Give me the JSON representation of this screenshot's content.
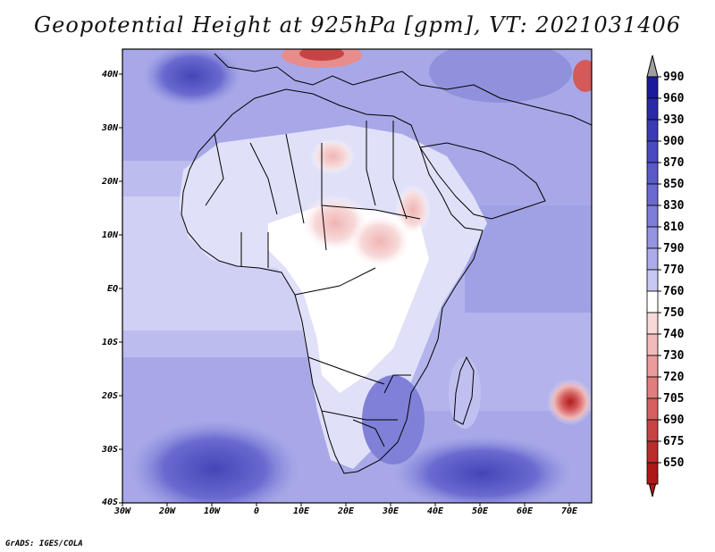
{
  "title": "Geopotential Height at 925hPa [gpm], VT: 2021031406",
  "footer": "GrADS: IGES/COLA",
  "lat_labels": [
    "40N",
    "30N",
    "20N",
    "10N",
    "EQ",
    "10S",
    "20S",
    "30S",
    "40S"
  ],
  "lon_labels": [
    "30W",
    "20W",
    "10W",
    "0",
    "10E",
    "20E",
    "30E",
    "40E",
    "50E",
    "60E",
    "70E"
  ],
  "colorbar": {
    "levels": [
      "990",
      "960",
      "930",
      "900",
      "870",
      "850",
      "830",
      "810",
      "790",
      "770",
      "760",
      "750",
      "740",
      "730",
      "720",
      "705",
      "690",
      "675",
      "650"
    ],
    "colors": [
      "#1a1a9a",
      "#2a2aa8",
      "#3a3ab4",
      "#4a4ac0",
      "#5a5ac8",
      "#6a6ad0",
      "#7e7ed8",
      "#9494e0",
      "#acacea",
      "#c8c8f2",
      "#ffffff",
      "#f8d8d8",
      "#f2baba",
      "#ea9c9c",
      "#e07e7e",
      "#d46060",
      "#c84444",
      "#bb2c2c",
      "#ae1818"
    ]
  }
}
